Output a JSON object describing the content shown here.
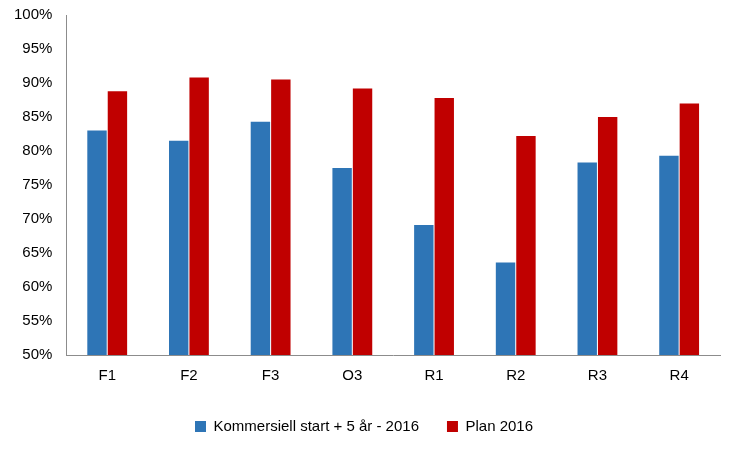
{
  "chart_data": {
    "type": "bar",
    "categories": [
      "F1",
      "F2",
      "F3",
      "O3",
      "R1",
      "R2",
      "R3",
      "R4"
    ],
    "series": [
      {
        "name": "Kommersiell start + 5 år - 2016",
        "color": "#2e75b6",
        "values": [
          83.0,
          81.5,
          84.3,
          77.5,
          69.1,
          63.6,
          78.3,
          79.3
        ]
      },
      {
        "name": "Plan 2016",
        "color": "#c00000",
        "values": [
          88.8,
          90.8,
          90.5,
          89.2,
          87.8,
          82.2,
          85.0,
          87.0
        ]
      }
    ],
    "ylim": [
      50,
      100
    ],
    "yticks": [
      {
        "value": 50,
        "label": "50%"
      },
      {
        "value": 55,
        "label": "55%"
      },
      {
        "value": 60,
        "label": "60%"
      },
      {
        "value": 65,
        "label": "65%"
      },
      {
        "value": 70,
        "label": "70%"
      },
      {
        "value": 75,
        "label": "75%"
      },
      {
        "value": 80,
        "label": "80%"
      },
      {
        "value": 85,
        "label": "85%"
      },
      {
        "value": 90,
        "label": "90%"
      },
      {
        "value": 95,
        "label": "95%"
      },
      {
        "value": 100,
        "label": "100%"
      }
    ],
    "grid": false,
    "legend": "bottom"
  }
}
